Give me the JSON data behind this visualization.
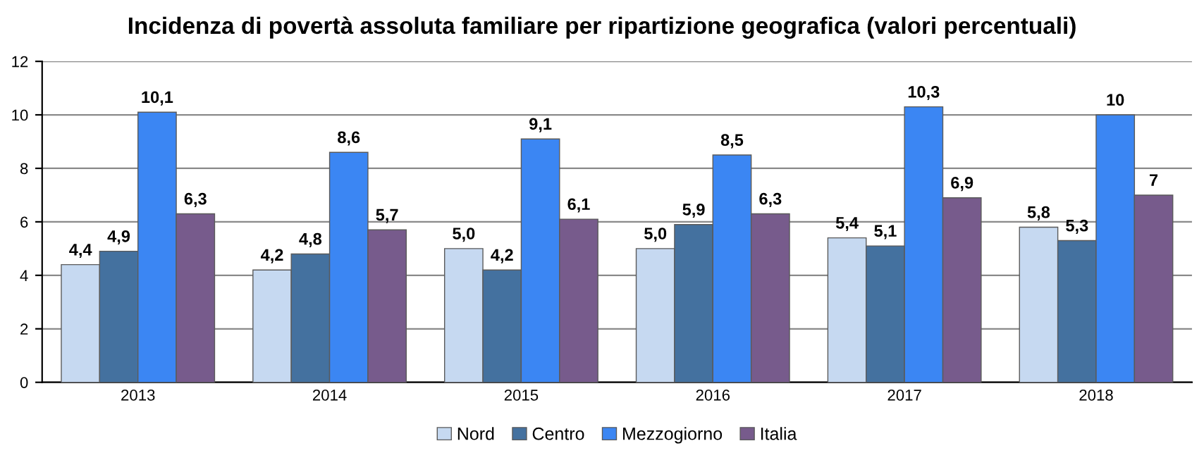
{
  "chart_data": {
    "type": "bar",
    "title": "Incidenza di povertà assoluta familiare per ripartizione geografica (valori percentuali)",
    "categories": [
      "2013",
      "2014",
      "2015",
      "2016",
      "2017",
      "2018"
    ],
    "series": [
      {
        "name": "Nord",
        "color": "#c6d9f1",
        "values": [
          4.4,
          4.2,
          5.0,
          5.0,
          5.4,
          5.8
        ],
        "value_labels": [
          "4,4",
          "4,2",
          "5,0",
          "5,0",
          "5,4",
          "5,8"
        ]
      },
      {
        "name": "Centro",
        "color": "#44719f",
        "values": [
          4.9,
          4.8,
          4.2,
          5.9,
          5.1,
          5.3
        ],
        "value_labels": [
          "4,9",
          "4,8",
          "4,2",
          "5,9",
          "5,1",
          "5,3"
        ]
      },
      {
        "name": "Mezzogiorno",
        "color": "#3b86f3",
        "values": [
          10.1,
          8.6,
          9.1,
          8.5,
          10.3,
          10
        ],
        "value_labels": [
          "10,1",
          "8,6",
          "9,1",
          "8,5",
          "10,3",
          "10"
        ]
      },
      {
        "name": "Italia",
        "color": "#775b8c",
        "values": [
          6.3,
          5.7,
          6.1,
          6.3,
          6.9,
          7
        ],
        "value_labels": [
          "6,3",
          "5,7",
          "6,1",
          "6,3",
          "6,9",
          "7"
        ]
      }
    ],
    "ylim": [
      0,
      12
    ],
    "yticks": [
      0,
      2,
      4,
      6,
      8,
      10,
      12
    ],
    "grid": "y",
    "legend": "bottom"
  }
}
